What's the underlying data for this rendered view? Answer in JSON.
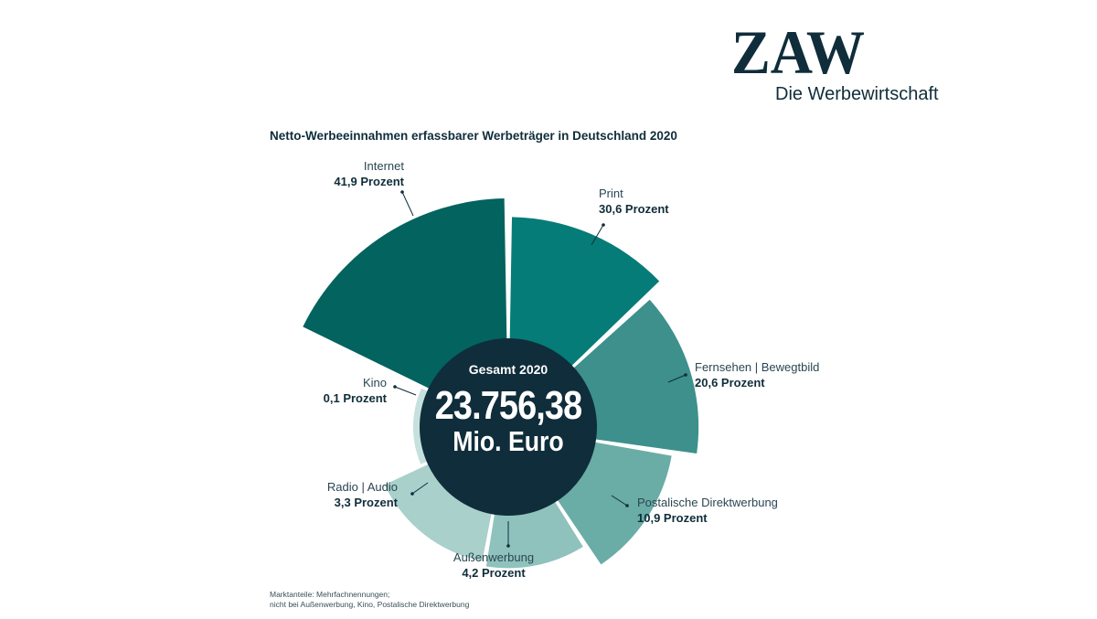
{
  "brand": {
    "logo_text": "ZAW",
    "subtitle": "Die Werbewirtschaft"
  },
  "colors": {
    "dark": "#0f2d3a",
    "internet": "#03635e",
    "print": "#057c77",
    "fernsehen": "#3d908c",
    "direktwerbung": "#6aaca6",
    "aussenwerbung": "#8fc2bd",
    "radio": "#a9d0cb",
    "kino": "#c6e1dd"
  },
  "chart_data": {
    "type": "pie",
    "title": "Netto-Werbeeinnahmen erfassbarer Werbeträger in Deutschland 2020",
    "center": {
      "caption": "Gesamt 2020",
      "value": "23.756,38",
      "unit": "Mio. Euro"
    },
    "slices": [
      {
        "key": "internet",
        "label": "Internet",
        "value_text": "41,9 Prozent",
        "value": 41.9
      },
      {
        "key": "print",
        "label": "Print",
        "value_text": "30,6 Prozent",
        "value": 30.6
      },
      {
        "key": "fernsehen",
        "label": "Fernsehen | Bewegtbild",
        "value_text": "20,6 Prozent",
        "value": 20.6
      },
      {
        "key": "direktwerbung",
        "label": "Postalische Direktwerbung",
        "value_text": "10,9 Prozent",
        "value": 10.9
      },
      {
        "key": "aussenwerbung",
        "label": "Außenwerbung",
        "value_text": "4,2 Prozent",
        "value": 4.2
      },
      {
        "key": "radio",
        "label": "Radio | Audio",
        "value_text": "3,3 Prozent",
        "value": 3.3
      },
      {
        "key": "kino",
        "label": "Kino",
        "value_text": "0,1 Prozent",
        "value": 0.1
      }
    ],
    "footnote": [
      "Marktanteile: Mehrfachnennungen;",
      "nicht bei Außenwerbung, Kino, Postalische Direktwerbung"
    ]
  }
}
